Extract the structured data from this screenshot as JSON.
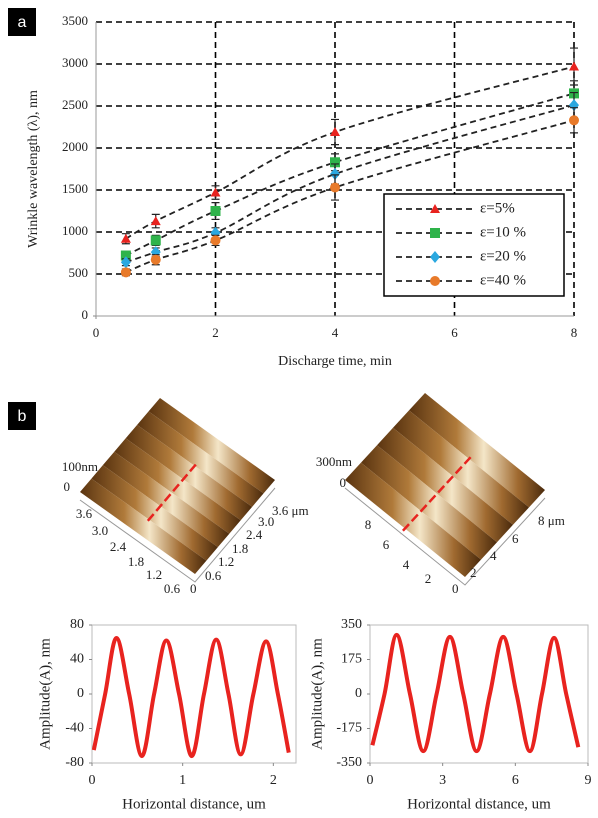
{
  "panel_labels": [
    "a",
    "b"
  ],
  "chart_data": [
    {
      "type": "line",
      "xlabel": "Discharge time, min",
      "ylabel": "Wrinkle wavelength (λ), nm",
      "x": [
        0.5,
        1,
        2,
        4,
        8
      ],
      "series": [
        {
          "name": "ε=5%",
          "color": "#e8231f",
          "marker": "triangle",
          "values": [
            920,
            1130,
            1470,
            2190,
            2970
          ],
          "errors": [
            60,
            80,
            80,
            150,
            220
          ]
        },
        {
          "name": "ε=10 %",
          "color": "#2eb34a",
          "marker": "square",
          "values": [
            720,
            900,
            1250,
            1830,
            2650
          ],
          "errors": [
            50,
            60,
            100,
            100,
            150
          ]
        },
        {
          "name": "ε=20 %",
          "color": "#2aa8e0",
          "marker": "diamond",
          "values": [
            640,
            760,
            990,
            1690,
            2510
          ],
          "errors": [
            40,
            50,
            60,
            120,
            150
          ]
        },
        {
          "name": "ε=40 %",
          "color": "#e87a2a",
          "marker": "circle",
          "values": [
            520,
            670,
            900,
            1530,
            2330
          ],
          "errors": [
            40,
            60,
            60,
            150,
            150
          ]
        }
      ],
      "xlim": [
        0,
        8
      ],
      "xticks": [
        0,
        2,
        4,
        6,
        8
      ],
      "ylim": [
        0,
        3500
      ],
      "yticks": [
        0,
        500,
        1000,
        1500,
        2000,
        2500,
        3000,
        3500
      ],
      "grid": true,
      "legend": "lower right"
    },
    {
      "type": "line",
      "xlabel": "Horizontal distance, um",
      "ylabel": "Amplitude(A), nm",
      "x": [
        0.02,
        0.145,
        0.27,
        0.41,
        0.55,
        0.685,
        0.82,
        0.96,
        1.1,
        1.235,
        1.37,
        1.505,
        1.64,
        1.78,
        1.92,
        2.05,
        2.17
      ],
      "series": [
        {
          "color": "#e8231f",
          "values": [
            -65,
            0,
            65,
            0,
            -72,
            0,
            62,
            0,
            -72,
            0,
            63,
            0,
            -70,
            0,
            61,
            0,
            -68
          ]
        }
      ],
      "xlim": [
        0,
        2.25
      ],
      "xticks": [
        0,
        1,
        2
      ],
      "ylim": [
        -80,
        80
      ],
      "yticks": [
        -80,
        -40,
        0,
        40,
        80
      ],
      "grid": false
    },
    {
      "type": "line",
      "xlabel": "Horizontal distance, um",
      "ylabel": "Amplitude(A), nm",
      "x": [
        0.1,
        0.6,
        1.1,
        1.65,
        2.2,
        2.75,
        3.3,
        3.85,
        4.4,
        4.95,
        5.5,
        6.05,
        6.6,
        7.1,
        7.6,
        8.1,
        8.6
      ],
      "series": [
        {
          "color": "#e8231f",
          "values": [
            -260,
            0,
            300,
            0,
            -290,
            0,
            290,
            0,
            -290,
            0,
            290,
            0,
            -290,
            0,
            285,
            0,
            -270
          ]
        }
      ],
      "xlim": [
        0,
        9
      ],
      "xticks": [
        0,
        3,
        6,
        9
      ],
      "ylim": [
        -350,
        350
      ],
      "yticks": [
        -350,
        -175,
        0,
        175,
        350
      ],
      "grid": false
    }
  ],
  "afm_images": [
    {
      "z_labels": [
        "100nm",
        "0"
      ],
      "left_axis": [
        "3.6",
        "3.0",
        "2.4",
        "1.8",
        "1.2",
        "0.6"
      ],
      "right_axis": [
        "0",
        "0.6",
        "1.2",
        "1.8",
        "2.4",
        "3.0",
        "3.6 μm"
      ]
    },
    {
      "z_labels": [
        "300nm",
        "0"
      ],
      "left_axis": [
        "8",
        "6",
        "4",
        "2"
      ],
      "right_axis": [
        "0",
        "2",
        "4",
        "6",
        "8 μm"
      ]
    }
  ]
}
